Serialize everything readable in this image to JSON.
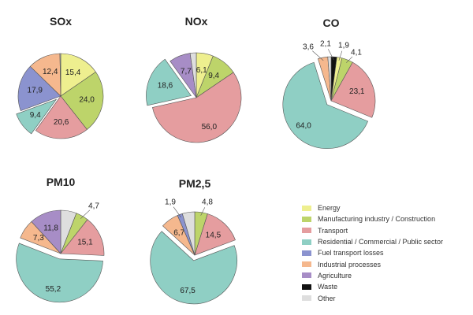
{
  "chart_data": [
    {
      "type": "pie",
      "title": "SOx",
      "slices": [
        {
          "category": "Energy",
          "value": 15.4,
          "label": "15,4"
        },
        {
          "category": "Manufacturing industry / Construction",
          "value": 24.0,
          "label": "24,0"
        },
        {
          "category": "Transport",
          "value": 20.6,
          "label": "20,6"
        },
        {
          "category": "Residential / Commercial / Public sector",
          "value": 9.4,
          "label": "9,4",
          "exploded": true
        },
        {
          "category": "Fuel transport losses",
          "value": 17.9,
          "label": "17,9"
        },
        {
          "category": "Industrial processes",
          "value": 12.4,
          "label": "12,4"
        },
        {
          "category": "Other",
          "value": 0.3,
          "label": ""
        }
      ]
    },
    {
      "type": "pie",
      "title": "NOx",
      "slices": [
        {
          "category": "Energy",
          "value": 6.1,
          "label": "6,1"
        },
        {
          "category": "Manufacturing industry / Construction",
          "value": 9.4,
          "label": "9,4"
        },
        {
          "category": "Transport",
          "value": 56.0,
          "label": "56,0"
        },
        {
          "category": "Residential / Commercial / Public sector",
          "value": 18.6,
          "label": "18,6",
          "exploded": true
        },
        {
          "category": "Agriculture",
          "value": 7.7,
          "label": "7,7"
        },
        {
          "category": "Other",
          "value": 2.2,
          "label": ""
        }
      ]
    },
    {
      "type": "pie",
      "title": "CO",
      "slices": [
        {
          "category": "Waste",
          "value": 2.1,
          "label": "2,1",
          "outside": true
        },
        {
          "category": "Energy",
          "value": 1.9,
          "label": "1,9",
          "outside": true
        },
        {
          "category": "Manufacturing industry / Construction",
          "value": 4.1,
          "label": "4,1",
          "outside": true
        },
        {
          "category": "Transport",
          "value": 23.1,
          "label": "23,1"
        },
        {
          "category": "Residential / Commercial / Public sector",
          "value": 64.0,
          "label": "64,0",
          "exploded": true
        },
        {
          "category": "Industrial processes",
          "value": 3.6,
          "label": "3,6",
          "outside": true
        },
        {
          "category": "Other",
          "value": 1.2,
          "label": ""
        }
      ]
    },
    {
      "type": "pie",
      "title": "PM10",
      "slices": [
        {
          "category": "Other",
          "value": 5.9,
          "label": ""
        },
        {
          "category": "Manufacturing industry / Construction",
          "value": 4.7,
          "label": "4,7",
          "outside": true
        },
        {
          "category": "Transport",
          "value": 15.1,
          "label": "15,1"
        },
        {
          "category": "Residential / Commercial / Public sector",
          "value": 55.2,
          "label": "55,2",
          "exploded": true
        },
        {
          "category": "Industrial processes",
          "value": 7.3,
          "label": "7,3"
        },
        {
          "category": "Agriculture",
          "value": 11.8,
          "label": "11,8"
        }
      ]
    },
    {
      "type": "pie",
      "title": "PM2,5",
      "slices": [
        {
          "category": "Manufacturing industry / Construction",
          "value": 4.8,
          "label": "4,8",
          "outside": true
        },
        {
          "category": "Transport",
          "value": 14.5,
          "label": "14,5"
        },
        {
          "category": "Residential / Commercial / Public sector",
          "value": 67.5,
          "label": "67,5",
          "exploded": true
        },
        {
          "category": "Industrial processes",
          "value": 6.7,
          "label": "6,7"
        },
        {
          "category": "Fuel transport losses",
          "value": 1.9,
          "label": "1,9",
          "outside": true
        },
        {
          "category": "Other",
          "value": 4.6,
          "label": ""
        }
      ]
    }
  ],
  "legend": {
    "placement": "bottom-right",
    "items": [
      {
        "label": "Energy",
        "color": "#eeef8f"
      },
      {
        "label": "Manufacturing industry / Construction",
        "color": "#bdd46a"
      },
      {
        "label": "Transport",
        "color": "#e59d9f"
      },
      {
        "label": "Residential / Commercial / Public sector",
        "color": "#8fcfc4"
      },
      {
        "label": "Fuel transport losses",
        "color": "#8b93cf"
      },
      {
        "label": "Industrial processes",
        "color": "#f5b88e"
      },
      {
        "label": "Agriculture",
        "color": "#a78dc6"
      },
      {
        "label": "Waste",
        "color": "#111111"
      },
      {
        "label": "Other",
        "color": "#dedede"
      }
    ]
  }
}
